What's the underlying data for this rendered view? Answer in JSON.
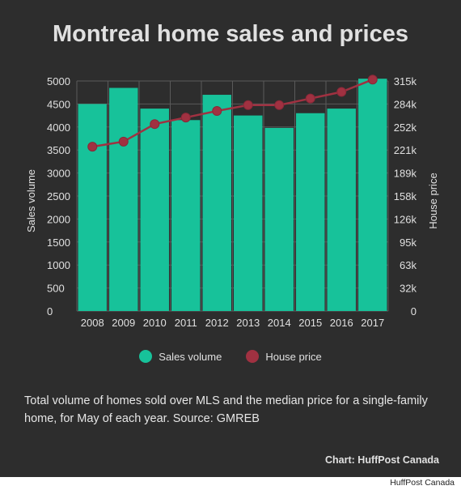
{
  "chart_data": {
    "type": "bar",
    "title": "Montreal home sales and prices",
    "categories": [
      "2008",
      "2009",
      "2010",
      "2011",
      "2012",
      "2013",
      "2014",
      "2015",
      "2016",
      "2017"
    ],
    "ylabel": "Sales volume",
    "ylabel_right": "House price",
    "ylim": [
      0,
      5000
    ],
    "ylim_right": [
      0,
      315000
    ],
    "yticks": [
      "0",
      "500",
      "1000",
      "1500",
      "2000",
      "2500",
      "3000",
      "3500",
      "4000",
      "4500",
      "5000"
    ],
    "yticks_right": [
      "0",
      "32k",
      "63k",
      "95k",
      "126k",
      "158k",
      "189k",
      "221k",
      "252k",
      "284k",
      "315k"
    ],
    "series": [
      {
        "name": "Sales volume",
        "type": "bar",
        "color": "#17c29a",
        "values": [
          4500,
          4850,
          4400,
          4150,
          4700,
          4250,
          3980,
          4300,
          4400,
          5050
        ]
      },
      {
        "name": "House price",
        "type": "line",
        "color": "#a03141",
        "values": [
          225000,
          232000,
          256000,
          265000,
          274000,
          282000,
          282000,
          291000,
          300000,
          317000
        ]
      }
    ],
    "grid": true,
    "legend": "bottom"
  },
  "caption": "Total volume of homes sold over MLS and the median price for a single-family home, for May of each year. Source: GMREB",
  "credit": "Chart: HuffPost Canada",
  "footer": "HuffPost Canada"
}
